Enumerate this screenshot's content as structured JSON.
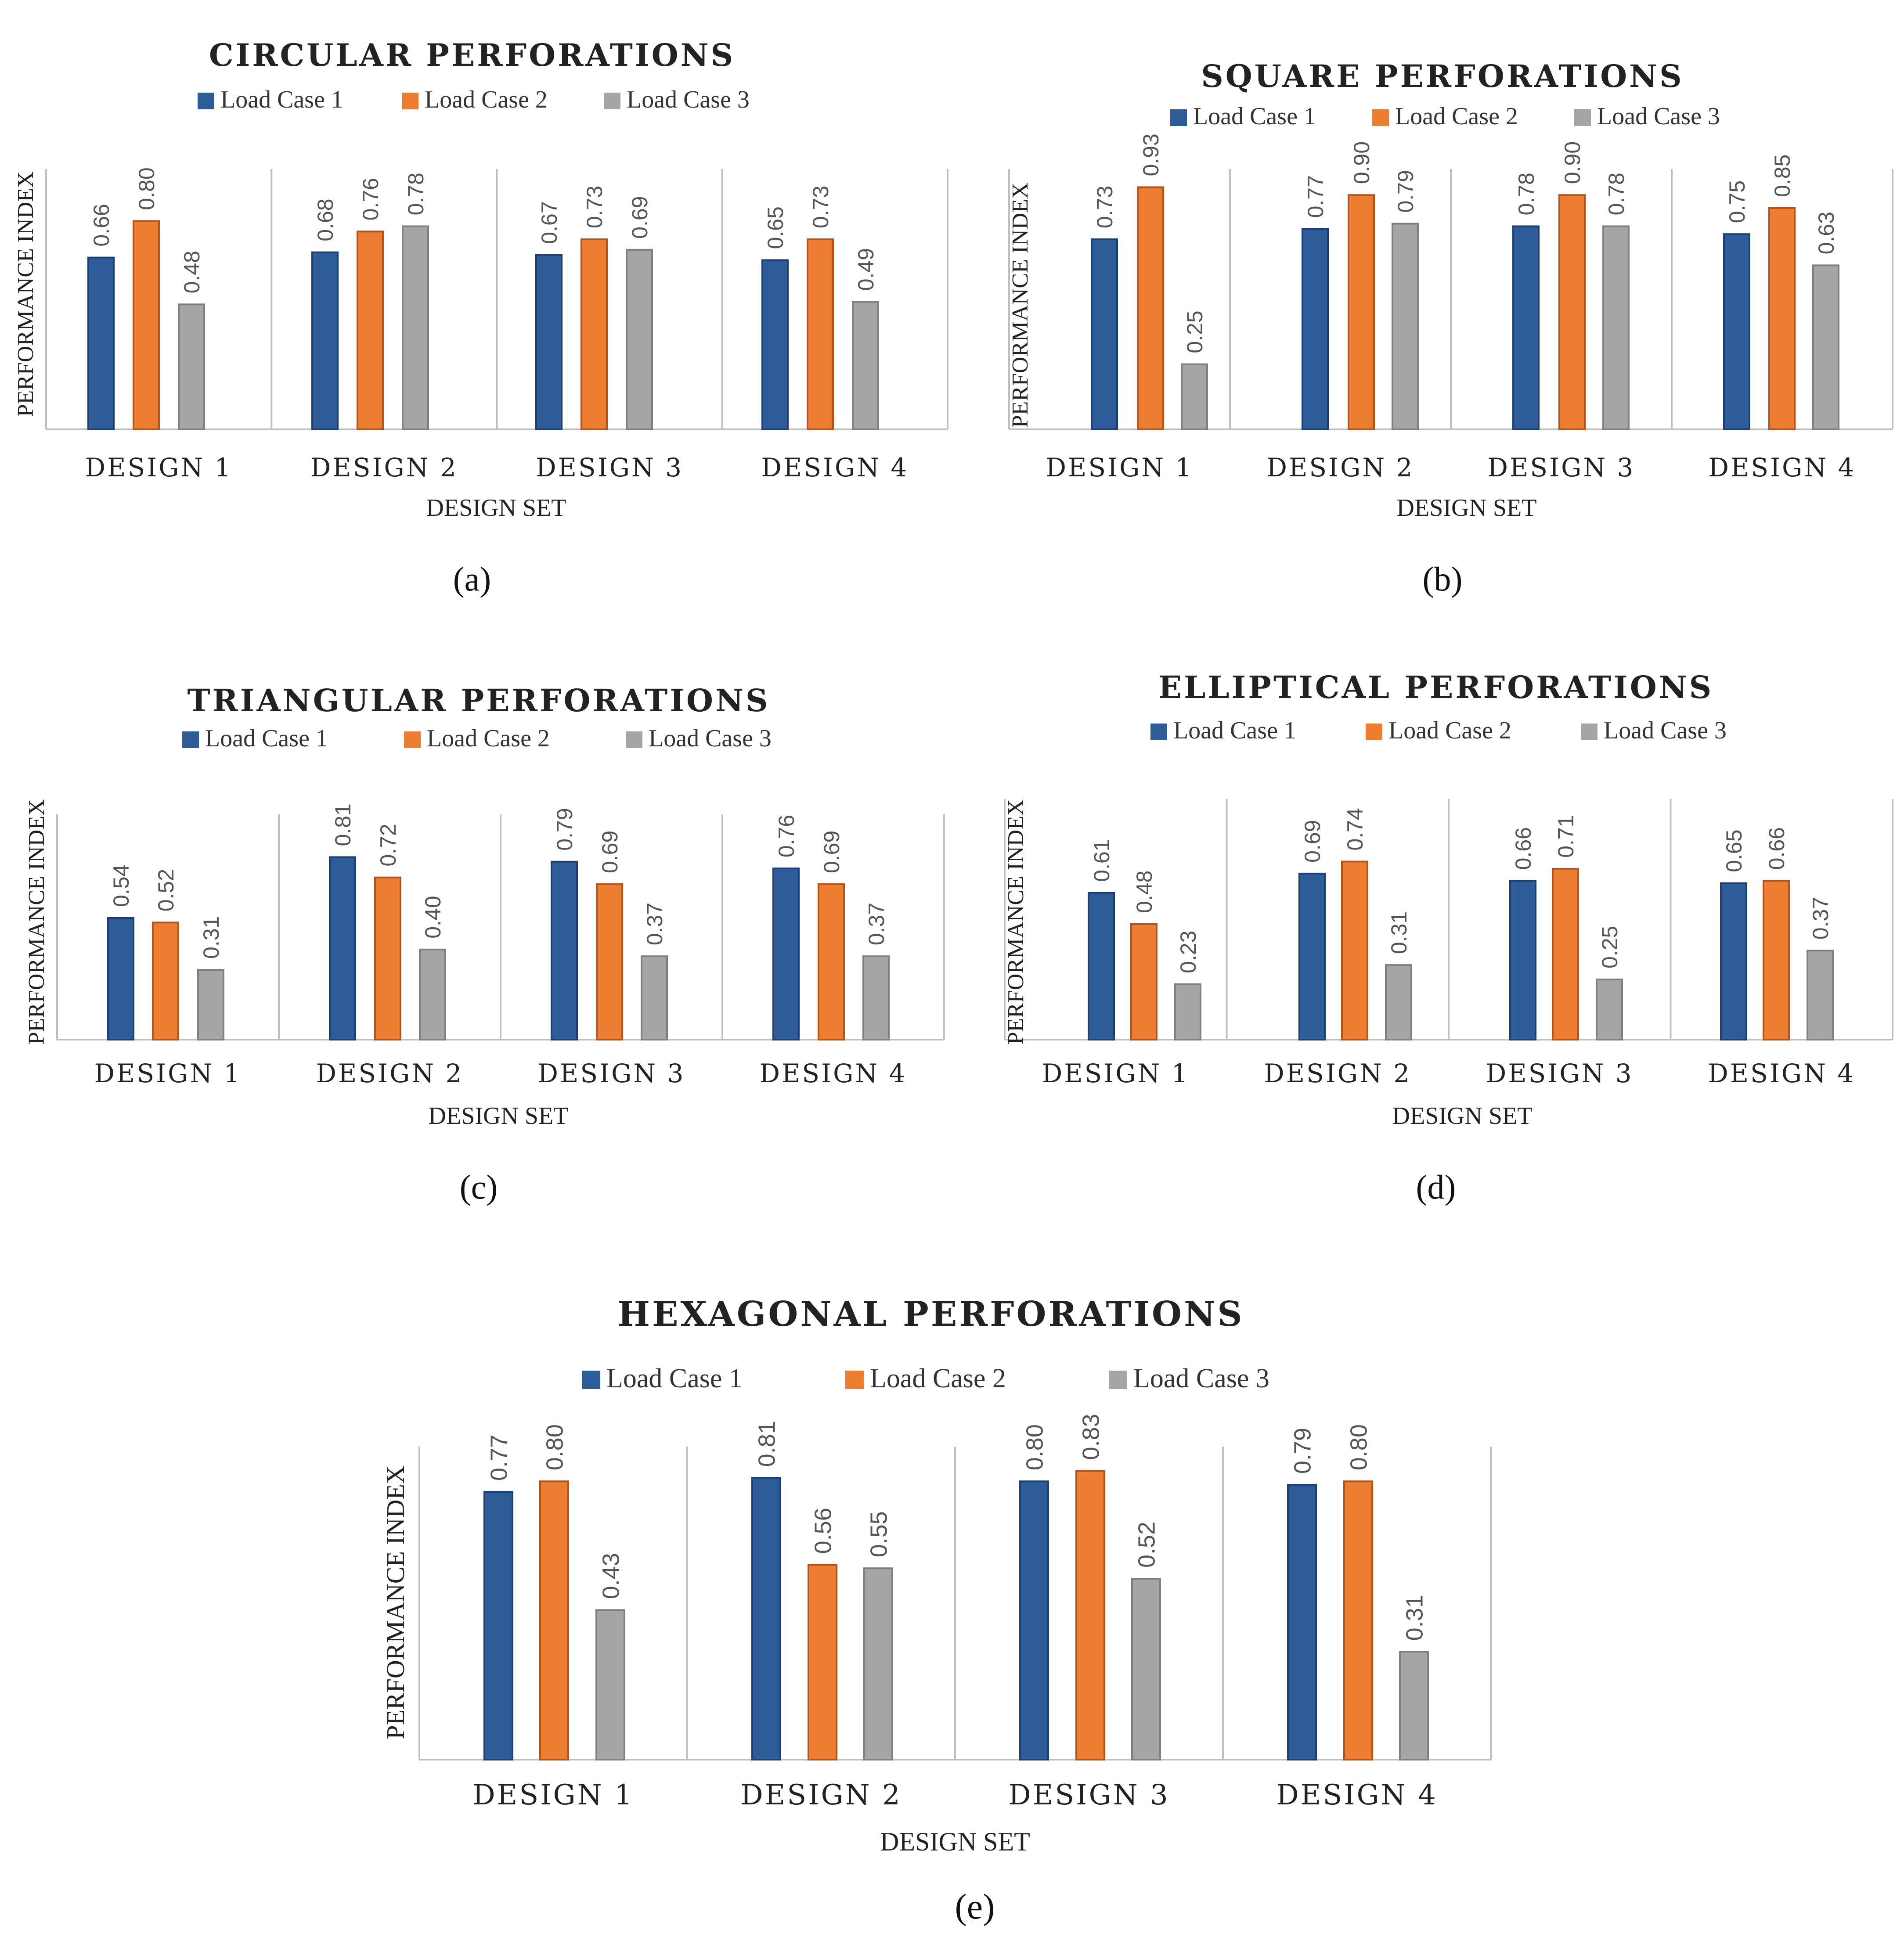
{
  "chart_data": [
    {
      "type": "bar",
      "panel_label": "(a)",
      "title": "CIRCULAR PERFORATIONS",
      "xlabel": "DESIGN SET",
      "ylabel": "PERFORMANCE INDEX",
      "categories": [
        "DESIGN 1",
        "DESIGN 2",
        "DESIGN 3",
        "DESIGN 4"
      ],
      "ylim": [
        0,
        1.0
      ],
      "legend": "top",
      "series": [
        {
          "name": "Load Case 1",
          "values": [
            0.66,
            0.68,
            0.67,
            0.65
          ],
          "labels": [
            "0.66",
            "0.68",
            "0.67",
            "0.65"
          ]
        },
        {
          "name": "Load Case 2",
          "values": [
            0.8,
            0.76,
            0.73,
            0.73
          ],
          "labels": [
            "0.80",
            "0.76",
            "0.73",
            "0.73"
          ]
        },
        {
          "name": "Load Case 3",
          "values": [
            0.48,
            0.78,
            0.69,
            0.49
          ],
          "labels": [
            "0.48",
            "0.78",
            "0.69",
            "0.49"
          ]
        }
      ]
    },
    {
      "type": "bar",
      "panel_label": "(b)",
      "title": "SQUARE PERFORATIONS",
      "xlabel": "DESIGN SET",
      "ylabel": "PERFORMANCE INDEX",
      "categories": [
        "DESIGN 1",
        "DESIGN 2",
        "DESIGN 3",
        "DESIGN 4"
      ],
      "ylim": [
        0,
        1.0
      ],
      "legend": "top",
      "series": [
        {
          "name": "Load Case 1",
          "values": [
            0.73,
            0.77,
            0.78,
            0.75
          ],
          "labels": [
            "0.73",
            "0.77",
            "0.78",
            "0.75"
          ]
        },
        {
          "name": "Load Case 2",
          "values": [
            0.93,
            0.9,
            0.9,
            0.85
          ],
          "labels": [
            "0.93",
            "0.90",
            "0.90",
            "0.85"
          ]
        },
        {
          "name": "Load Case 3",
          "values": [
            0.25,
            0.79,
            0.78,
            0.63
          ],
          "labels": [
            "0.25",
            "0.79",
            "0.78",
            "0.63"
          ]
        }
      ]
    },
    {
      "type": "bar",
      "panel_label": "(c)",
      "title": "TRIANGULAR PERFORATIONS",
      "xlabel": "DESIGN SET",
      "ylabel": "PERFORMANCE INDEX",
      "categories": [
        "DESIGN 1",
        "DESIGN 2",
        "DESIGN 3",
        "DESIGN 4"
      ],
      "ylim": [
        0,
        1.0
      ],
      "legend": "top",
      "series": [
        {
          "name": "Load Case 1",
          "values": [
            0.54,
            0.81,
            0.79,
            0.76
          ],
          "labels": [
            "0.54",
            "0.81",
            "0.79",
            "0.76"
          ]
        },
        {
          "name": "Load Case 2",
          "values": [
            0.52,
            0.72,
            0.69,
            0.69
          ],
          "labels": [
            "0.52",
            "0.72",
            "0.69",
            "0.69"
          ]
        },
        {
          "name": "Load Case 3",
          "values": [
            0.31,
            0.4,
            0.37,
            0.37
          ],
          "labels": [
            "0.31",
            "0.40",
            "0.37",
            "0.37"
          ]
        }
      ]
    },
    {
      "type": "bar",
      "panel_label": "(d)",
      "title": "ELLIPTICAL PERFORATIONS",
      "xlabel": "DESIGN SET",
      "ylabel": "PERFORMANCE INDEX",
      "categories": [
        "DESIGN 1",
        "DESIGN 2",
        "DESIGN 3",
        "DESIGN 4"
      ],
      "ylim": [
        0,
        1.0
      ],
      "legend": "top",
      "series": [
        {
          "name": "Load Case 1",
          "values": [
            0.61,
            0.69,
            0.66,
            0.65
          ],
          "labels": [
            "0.61",
            "0.69",
            "0.66",
            "0.65"
          ]
        },
        {
          "name": "Load Case 2",
          "values": [
            0.48,
            0.74,
            0.71,
            0.66
          ],
          "labels": [
            "0.48",
            "0.74",
            "0.71",
            "0.66"
          ]
        },
        {
          "name": "Load Case 3",
          "values": [
            0.23,
            0.31,
            0.25,
            0.37
          ],
          "labels": [
            "0.23",
            "0.31",
            "0.25",
            "0.37"
          ]
        }
      ]
    },
    {
      "type": "bar",
      "panel_label": "(e)",
      "title": "HEXAGONAL PERFORATIONS",
      "xlabel": "DESIGN SET",
      "ylabel": "PERFORMANCE INDEX",
      "categories": [
        "DESIGN 1",
        "DESIGN 2",
        "DESIGN 3",
        "DESIGN 4"
      ],
      "ylim": [
        0,
        0.9
      ],
      "legend": "top",
      "series": [
        {
          "name": "Load Case 1",
          "values": [
            0.77,
            0.81,
            0.8,
            0.79
          ],
          "labels": [
            "0.77",
            "0.81",
            "0.80",
            "0.79"
          ]
        },
        {
          "name": "Load Case 2",
          "values": [
            0.8,
            0.56,
            0.83,
            0.8
          ],
          "labels": [
            "0.80",
            "0.56",
            "0.83",
            "0.80"
          ]
        },
        {
          "name": "Load Case 3",
          "values": [
            0.43,
            0.55,
            0.52,
            0.31
          ],
          "labels": [
            "0.43",
            "0.55",
            "0.52",
            "0.31"
          ]
        }
      ]
    }
  ],
  "colors": {
    "series": [
      "#2E5C99",
      "#ED7D31",
      "#A5A5A5"
    ],
    "series_edge": [
      "#1B3F73",
      "#B5541A",
      "#7F7F7F"
    ],
    "axis": "#BFBFBF"
  }
}
